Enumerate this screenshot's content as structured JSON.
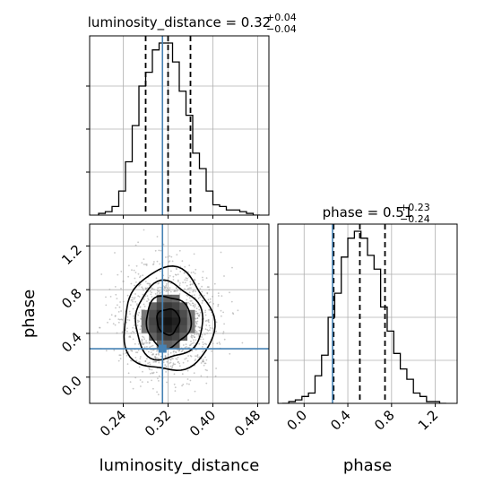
{
  "chart_data": [
    {
      "type": "histogram",
      "panel": "top-left",
      "parameter": "luminosity_distance",
      "title": {
        "text": "luminosity_distance = 0.32",
        "sup": "+0.04",
        "sub": "−0.04"
      },
      "xlim": [
        0.18,
        0.5
      ],
      "bin_edges": [
        0.196,
        0.208,
        0.22,
        0.232,
        0.244,
        0.256,
        0.268,
        0.28,
        0.292,
        0.304,
        0.316,
        0.328,
        0.34,
        0.352,
        0.364,
        0.376,
        0.388,
        0.4,
        0.412,
        0.424,
        0.436,
        0.448,
        0.46,
        0.472,
        0.484
      ],
      "density": [
        0.01,
        0.02,
        0.05,
        0.14,
        0.31,
        0.52,
        0.75,
        0.83,
        0.96,
        1.0,
        1.0,
        0.89,
        0.72,
        0.58,
        0.36,
        0.27,
        0.14,
        0.06,
        0.05,
        0.03,
        0.03,
        0.02,
        0.01,
        0.0
      ],
      "quantiles": [
        0.28,
        0.32,
        0.36
      ],
      "truth": 0.31,
      "xticks": [
        0.24,
        0.32,
        0.4,
        0.48
      ],
      "grid": true
    },
    {
      "type": "histogram",
      "panel": "bottom-right",
      "parameter": "phase",
      "title": {
        "text": "phase = 0.51",
        "sup": "+0.23",
        "sub": "−0.24"
      },
      "xlim": [
        -0.24,
        1.4
      ],
      "bin_edges": [
        -0.2,
        -0.14,
        -0.08,
        -0.02,
        0.04,
        0.1,
        0.16,
        0.22,
        0.28,
        0.34,
        0.4,
        0.46,
        0.52,
        0.58,
        0.64,
        0.7,
        0.76,
        0.82,
        0.88,
        0.94,
        1.0,
        1.06,
        1.12,
        1.18,
        1.24,
        1.3
      ],
      "density": [
        0.0,
        0.01,
        0.02,
        0.04,
        0.06,
        0.16,
        0.28,
        0.5,
        0.64,
        0.85,
        0.96,
        1.0,
        0.96,
        0.86,
        0.78,
        0.56,
        0.42,
        0.29,
        0.2,
        0.14,
        0.06,
        0.04,
        0.01,
        0.01,
        0.0
      ],
      "quantiles": [
        0.27,
        0.51,
        0.74
      ],
      "truth": 0.26,
      "xticks": [
        0.0,
        0.4,
        0.8,
        1.2
      ],
      "grid": true
    },
    {
      "type": "contour",
      "panel": "bottom-left",
      "x_parameter": "luminosity_distance",
      "y_parameter": "phase",
      "xlim": [
        0.18,
        0.5
      ],
      "ylim": [
        -0.24,
        1.4
      ],
      "xticks": [
        0.24,
        0.32,
        0.4,
        0.48
      ],
      "yticks": [
        0.0,
        0.4,
        0.8,
        1.2
      ],
      "xlabel": "luminosity_distance",
      "ylabel": "phase",
      "center": [
        0.32,
        0.51
      ],
      "sigma": [
        0.04,
        0.235
      ],
      "correlation": -0.05,
      "sigma_levels": [
        0.5,
        1.0,
        1.5,
        2.0
      ],
      "truth": [
        0.31,
        0.26
      ],
      "grid": true
    }
  ],
  "style": {
    "truth_color": "#4682b4",
    "hist_color": "#000000",
    "grid_color": "#b0b0b0",
    "scatter_color": "#9a9a9a"
  }
}
